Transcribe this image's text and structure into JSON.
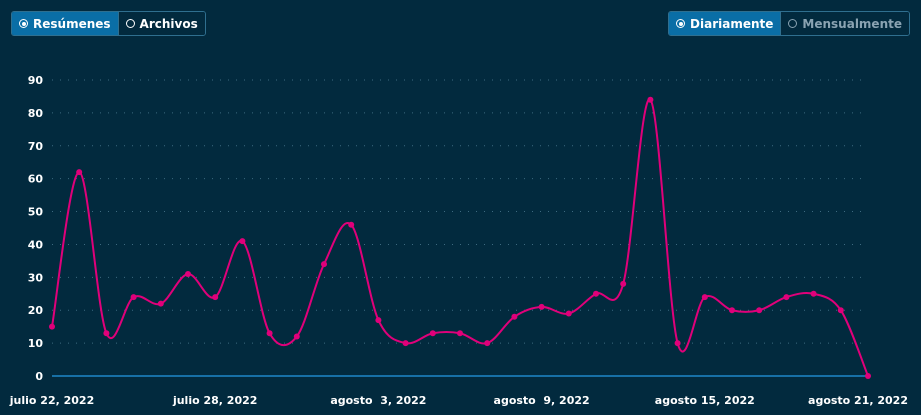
{
  "view_toggle": {
    "options": [
      {
        "label": "Resúmenes",
        "selected": true
      },
      {
        "label": "Archivos",
        "selected": false
      }
    ]
  },
  "period_toggle": {
    "options": [
      {
        "label": "Diariamente",
        "selected": true
      },
      {
        "label": "Mensualmente",
        "selected": false
      }
    ]
  },
  "chart_data": {
    "type": "line",
    "title": "",
    "xlabel": "",
    "ylabel": "",
    "ylim": [
      0,
      90
    ],
    "y_ticks": [
      0,
      10,
      20,
      30,
      40,
      50,
      60,
      70,
      80,
      90
    ],
    "x_tick_labels": [
      "julio 22, 2022",
      "julio 28, 2022",
      "agosto  3, 2022",
      "agosto  9, 2022",
      "agosto 15, 2022",
      "agosto 21, 2022"
    ],
    "x_start": "2022-07-22",
    "x_end": "2022-08-21",
    "grid": true,
    "colors": {
      "line": "#e0007a",
      "grid": "#3d6a80",
      "baseline": "#1e88c8"
    },
    "series": [
      {
        "values": [
          {
            "x": "2022-07-22",
            "y": 15
          },
          {
            "x": "2022-07-23",
            "y": 62
          },
          {
            "x": "2022-07-24",
            "y": 13
          },
          {
            "x": "2022-07-25",
            "y": 24
          },
          {
            "x": "2022-07-26",
            "y": 22
          },
          {
            "x": "2022-07-27",
            "y": 31
          },
          {
            "x": "2022-07-28",
            "y": 24
          },
          {
            "x": "2022-07-29",
            "y": 41
          },
          {
            "x": "2022-07-30",
            "y": 13
          },
          {
            "x": "2022-07-31",
            "y": 12
          },
          {
            "x": "2022-08-01",
            "y": 34
          },
          {
            "x": "2022-08-02",
            "y": 46
          },
          {
            "x": "2022-08-03",
            "y": 17
          },
          {
            "x": "2022-08-04",
            "y": 10
          },
          {
            "x": "2022-08-05",
            "y": 13
          },
          {
            "x": "2022-08-06",
            "y": 13
          },
          {
            "x": "2022-08-07",
            "y": 10
          },
          {
            "x": "2022-08-08",
            "y": 18
          },
          {
            "x": "2022-08-09",
            "y": 21
          },
          {
            "x": "2022-08-10",
            "y": 19
          },
          {
            "x": "2022-08-11",
            "y": 25
          },
          {
            "x": "2022-08-12",
            "y": 28
          },
          {
            "x": "2022-08-13",
            "y": 84
          },
          {
            "x": "2022-08-14",
            "y": 10
          },
          {
            "x": "2022-08-15",
            "y": 24
          },
          {
            "x": "2022-08-16",
            "y": 20
          },
          {
            "x": "2022-08-17",
            "y": 20
          },
          {
            "x": "2022-08-18",
            "y": 24
          },
          {
            "x": "2022-08-19",
            "y": 25
          },
          {
            "x": "2022-08-20",
            "y": 20
          },
          {
            "x": "2022-08-21",
            "y": 0
          }
        ]
      }
    ]
  }
}
